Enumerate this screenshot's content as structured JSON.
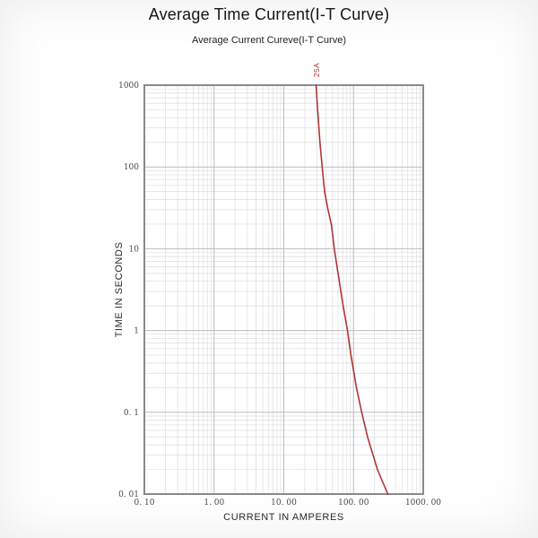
{
  "page": {
    "title": "Average Time Current(I-T Curve)",
    "subtitle": "Average Current Cureve(I-T Curve)"
  },
  "chart_data": {
    "type": "line",
    "title": "Average Time Current(I-T Curve)",
    "subtitle": "Average Current Cureve(I-T Curve)",
    "xlabel": "CURRENT IN AMPERES",
    "ylabel": "TIME IN SECONDS",
    "x_scale": "log",
    "y_scale": "log",
    "xlim": [
      0.1,
      1000
    ],
    "ylim": [
      0.01,
      1000
    ],
    "x_ticks": [
      "0. 10",
      "1. 00",
      "10. 00",
      "100. 00",
      "1000. 00"
    ],
    "y_ticks": [
      "1000",
      "100",
      "10",
      "1",
      "0. 1",
      "0. 01"
    ],
    "grid": "log major+minor, full frame border",
    "legend_position": "none",
    "point_format": "[current_amperes, time_seconds]",
    "series": [
      {
        "name": "25A",
        "color": "#b03535",
        "points": [
          [
            29,
            1000
          ],
          [
            30.5,
            500
          ],
          [
            33,
            200
          ],
          [
            35.5,
            100
          ],
          [
            38.5,
            50
          ],
          [
            43,
            30
          ],
          [
            48,
            20
          ],
          [
            53,
            10
          ],
          [
            60,
            5
          ],
          [
            71,
            2
          ],
          [
            82,
            1
          ],
          [
            92,
            0.5
          ],
          [
            110,
            0.2
          ],
          [
            131,
            0.1
          ],
          [
            159,
            0.05
          ],
          [
            220,
            0.02
          ],
          [
            310,
            0.01
          ]
        ]
      }
    ]
  },
  "colors": {
    "curve": "#b03535",
    "grid_minor": "#dedede",
    "grid_major": "#bcbcbc",
    "plot_border": "#8a8a8a",
    "tick_text": "#4a4a4a",
    "title_text": "#161616"
  }
}
